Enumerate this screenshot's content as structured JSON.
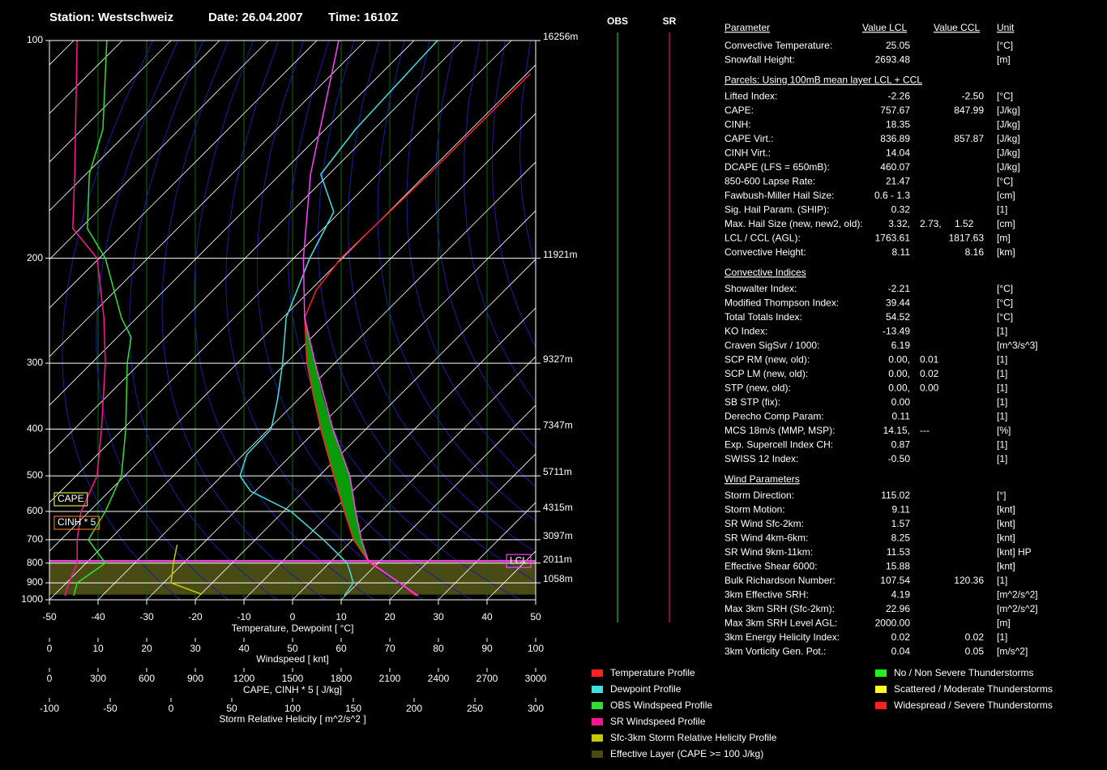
{
  "chart_data": {
    "type": "skewt",
    "title": "Station: Westschweiz",
    "date": "Date: 26.04.2007",
    "time": "Time: 1610Z",
    "xlabel": "Temperature, Dewpoint [ °C]",
    "xlim": [
      -50,
      50
    ],
    "xticks": [
      -50,
      -40,
      -30,
      -20,
      -10,
      0,
      10,
      20,
      30,
      40,
      50
    ],
    "ylim": [
      1000,
      100
    ],
    "yticks": [
      100,
      200,
      300,
      400,
      500,
      600,
      700,
      800,
      900,
      1000
    ],
    "height_labels": [
      {
        "value": 100,
        "label": "16256m"
      },
      {
        "value": 200,
        "label": "11921m"
      },
      {
        "value": 300,
        "label": "9327m"
      },
      {
        "value": 400,
        "label": "7347m"
      },
      {
        "value": 500,
        "label": "5711m"
      },
      {
        "value": 600,
        "label": "4315m"
      },
      {
        "value": 700,
        "label": "3097m"
      },
      {
        "value": 800,
        "label": "2011m"
      },
      {
        "value": 900,
        "label": "1058m"
      }
    ],
    "wind_axis": {
      "label": "Windspeed  [ knt]",
      "xlim": [
        0,
        100
      ],
      "xticks": [
        0,
        10,
        20,
        30,
        40,
        50,
        60,
        70,
        80,
        90,
        100
      ]
    },
    "cape_axis": {
      "label": "CAPE, CINH * 5  [ J/kg]",
      "xlim": [
        0,
        3000
      ],
      "xticks": [
        0,
        300,
        600,
        900,
        1200,
        1500,
        1800,
        2100,
        2400,
        2700,
        3000
      ]
    },
    "srh_axis": {
      "label": "Storm Relative Helicity  [ m^2/s^2 ]",
      "xlim": [
        -100,
        300
      ],
      "xticks": [
        -100,
        -50,
        0,
        50,
        100,
        150,
        200,
        250,
        300
      ]
    },
    "series": [
      {
        "name": "Temperature Profile",
        "color": "#ff2020",
        "pressure": [
          975,
          900,
          850,
          800,
          700,
          600,
          500,
          400,
          300,
          250,
          225,
          200,
          150,
          110
        ],
        "values": [
          24.5,
          18.5,
          13.7,
          8.3,
          0.2,
          -7.5,
          -17.0,
          -29.3,
          -45.7,
          -55.5,
          -58.8,
          -60.3,
          -59.5,
          -59.3
        ]
      },
      {
        "name": "Dewpoint Profile",
        "color": "#40e0e0",
        "pressure": [
          975,
          900,
          850,
          800,
          700,
          600,
          540,
          500,
          450,
          400,
          350,
          300,
          250,
          200,
          170,
          150,
          130,
          100
        ],
        "values": [
          9.8,
          9.0,
          6.5,
          3.7,
          -6.0,
          -18.5,
          -31.0,
          -36.3,
          -39.3,
          -39.5,
          -44.3,
          -50.7,
          -59.3,
          -66.7,
          -71.3,
          -81.7,
          -83.8,
          -85.2
        ]
      },
      {
        "color": "#ff40ff",
        "pressure": [
          975,
          790,
          700,
          600,
          500,
          400,
          300,
          250,
          200,
          150,
          100
        ],
        "values": [
          25.0,
          7.6,
          1.8,
          -5.2,
          -13.7,
          -26.8,
          -44.0,
          -55.5,
          -68.0,
          -83.8,
          -105.5
        ]
      },
      {
        "name": "OBS Windspeed Profile",
        "color": "#30e030",
        "axis": "wind",
        "pressure": [
          975,
          900,
          800,
          700,
          600,
          500,
          400,
          300,
          270,
          250,
          200,
          180,
          150,
          130,
          100
        ],
        "values": [
          5,
          5.7,
          11.5,
          8,
          11.5,
          14.8,
          15.7,
          16,
          16.8,
          14.8,
          11.5,
          7.8,
          8.2,
          11,
          11.8
        ]
      },
      {
        "name": "SR Windspeed Profile",
        "color": "#ff1493",
        "axis": "wind",
        "pressure": [
          975,
          900,
          800,
          700,
          600,
          500,
          400,
          300,
          250,
          200,
          180,
          150,
          100
        ],
        "values": [
          3.2,
          4,
          5.7,
          5.7,
          6.5,
          9.8,
          10.7,
          11.5,
          11.2,
          9.8,
          4.8,
          5.2,
          5.7
        ]
      }
    ],
    "helicity_profile": {
      "name": "Sfc-3km Storm Relative Helicity Profile",
      "color": "#c8c800",
      "pressure": [
        965,
        900,
        800,
        720
      ],
      "values": [
        25,
        0,
        2,
        5
      ]
    },
    "effective_layer": {
      "name": "Effective Layer (CAPE >= 100 J/kg)",
      "color": "#4a4a14",
      "bottom": 968,
      "top": 785
    },
    "lcl": {
      "label": "LCL",
      "pressure": 790,
      "color": "#ff40ff"
    },
    "annotations": [
      {
        "text": "CAPE",
        "color": "#e0e040"
      },
      {
        "text": "CINH * 5",
        "color": "#e07030"
      }
    ],
    "barb_columns": [
      {
        "name": "OBS",
        "color": "#30e030"
      },
      {
        "name": "SR",
        "color": "#ff1493"
      }
    ],
    "threat_legend": [
      {
        "name": "No / Non Severe Thunderstorms",
        "color": "#20f020"
      },
      {
        "name": "Scattered / Moderate Thunderstorms",
        "color": "#ffff20"
      },
      {
        "name": "Widespread / Severe Thunderstorms",
        "color": "#ff2020"
      }
    ]
  },
  "parameters": {
    "header": [
      "Parameter",
      "Value LCL",
      "Value CCL",
      "Unit"
    ],
    "sections": [
      {
        "rows": [
          {
            "label": "Convective Temperature:",
            "values": [
              {
                "text": "25.05",
                "color": "#ff3030"
              }
            ],
            "unit": "[°C]"
          },
          {
            "label": "Snowfall Height:",
            "values": [
              {
                "text": "2693.48",
                "color": "#ffffff"
              }
            ],
            "unit": "[m]"
          }
        ]
      },
      {
        "title": "Parcels: Using 100mB mean layer LCL + CCL",
        "rows": [
          {
            "label": "Lifted Index:",
            "values": [
              {
                "text": "-2.26",
                "color": "#ff3030"
              },
              {
                "text": "-2.50",
                "color": "#ff3030"
              }
            ],
            "unit": "[°C]"
          },
          {
            "label": "CAPE:",
            "values": [
              {
                "text": "757.67",
                "color": "#ff3030"
              },
              {
                "text": "847.99",
                "color": "#ff3030"
              }
            ],
            "unit": "[J/kg]"
          },
          {
            "label": "CINH:",
            "values": [
              {
                "text": "18.35",
                "color": "#ff3030"
              }
            ],
            "unit": "[J/kg]"
          },
          {
            "label": "CAPE Virt.:",
            "values": [
              {
                "text": "836.89",
                "color": "#ff3030"
              },
              {
                "text": "857.87",
                "color": "#ff3030"
              }
            ],
            "unit": "[J/kg]"
          },
          {
            "label": "CINH Virt.:",
            "values": [
              {
                "text": "14.04",
                "color": "#ff3030"
              }
            ],
            "unit": "[J/kg]"
          },
          {
            "label": "DCAPE (LFS = 650mB):",
            "values": [
              {
                "text": "460.07",
                "color": "#ffff40"
              }
            ],
            "unit": "[J/kg]"
          },
          {
            "label": "850-600 Lapse Rate:",
            "values": [
              {
                "text": "21.47",
                "color": "#ff3030"
              }
            ],
            "unit": "[°C]"
          },
          {
            "label": "Fawbush-Miller Hail Size:",
            "values": [
              {
                "text": "0.6 - 1.3",
                "color": "#ffff40"
              }
            ],
            "unit": "[cm]"
          },
          {
            "label": "Sig. Hail Param. (SHIP):",
            "values": [
              {
                "text": "0.32",
                "color": "#30f030"
              }
            ],
            "unit": "[1]"
          },
          {
            "label": "Max. Hail Size (new, new2, old):",
            "values": [
              {
                "text": "3.32,",
                "color": "#ff3030"
              },
              {
                "text": "2.73,",
                "color": "#ffff40"
              },
              {
                "text": "1.52",
                "color": "#ffff40"
              }
            ],
            "unit": "[cm]"
          },
          {
            "label": "LCL / CCL (AGL):",
            "values": [
              {
                "text": "1763.61",
                "color": "#ffff40"
              },
              {
                "text": "1817.63",
                "color": "#ffff40"
              }
            ],
            "unit": "[m]"
          },
          {
            "label": "Convective Height:",
            "values": [
              {
                "text": "8.11",
                "color": "#ff3030"
              },
              {
                "text": "8.16",
                "color": "#ff3030"
              }
            ],
            "unit": "[km]"
          }
        ]
      },
      {
        "title": "Convective Indices",
        "rows": [
          {
            "label": "Showalter Index:",
            "values": [
              {
                "text": "-2.21",
                "color": "#ff3030"
              }
            ],
            "unit": "[°C]"
          },
          {
            "label": "Modified Thompson Index:",
            "values": [
              {
                "text": "39.44",
                "color": "#ff3030"
              }
            ],
            "unit": "[°C]"
          },
          {
            "label": "Total Totals Index:",
            "values": [
              {
                "text": "54.52",
                "color": "#ff3030"
              }
            ],
            "unit": "[°C]"
          },
          {
            "label": "KO Index:",
            "values": [
              {
                "text": "-13.49",
                "color": "#ff3030"
              }
            ],
            "unit": "[1]"
          },
          {
            "label": "Craven SigSvr / 1000:",
            "values": [
              {
                "text": "6.19",
                "color": "#ff3030"
              }
            ],
            "unit": "[m^3/s^3]"
          },
          {
            "label": "SCP RM (new, old):",
            "values": [
              {
                "text": "0.00,",
                "color": "#30f030"
              },
              {
                "text": "0.01",
                "color": "#30f030"
              }
            ],
            "unit": "[1]"
          },
          {
            "label": "SCP LM (new, old):",
            "values": [
              {
                "text": "0.00,",
                "color": "#30f030"
              },
              {
                "text": "0.02",
                "color": "#30f030"
              }
            ],
            "unit": "[1]"
          },
          {
            "label": "STP (new, old):",
            "values": [
              {
                "text": "0.00,",
                "color": "#30f030"
              },
              {
                "text": "0.00",
                "color": "#30f030"
              }
            ],
            "unit": "[1]"
          },
          {
            "label": "SB STP (fix):",
            "values": [
              {
                "text": "0.00",
                "color": "#30f030"
              }
            ],
            "unit": "[1]"
          },
          {
            "label": "Derecho Comp Param:",
            "values": [
              {
                "text": "0.11",
                "color": "#30f030"
              }
            ],
            "unit": "[1]"
          },
          {
            "label": "MCS 18m/s (MMP, MSP):",
            "values": [
              {
                "text": "14.15,",
                "color": "#30f030"
              },
              {
                "text": "---",
                "color": "#ffffff"
              }
            ],
            "unit": "[%]"
          },
          {
            "label": "Exp. Supercell Index CH:",
            "values": [
              {
                "text": "0.87",
                "color": "#30f030"
              }
            ],
            "unit": "[1]"
          },
          {
            "label": "SWISS 12 Index:",
            "values": [
              {
                "text": "-0.50",
                "color": "#ff3030"
              }
            ],
            "unit": "[1]"
          }
        ]
      },
      {
        "title": "Wind Parameters",
        "rows": [
          {
            "label": "Storm Direction:",
            "values": [
              {
                "text": "115.02",
                "color": "#ffffff"
              }
            ],
            "unit": "[°]"
          },
          {
            "label": "Storm Motion:",
            "values": [
              {
                "text": "9.11",
                "color": "#30f030"
              }
            ],
            "unit": "[knt]"
          },
          {
            "label": "SR Wind Sfc-2km:",
            "values": [
              {
                "text": "1.57",
                "color": "#30f030"
              }
            ],
            "unit": "[knt]"
          },
          {
            "label": "SR Wind 4km-6km:",
            "values": [
              {
                "text": "8.25",
                "color": "#30f030"
              }
            ],
            "unit": "[knt]"
          },
          {
            "label": "SR Wind 9km-11km:",
            "values": [
              {
                "text": "11.53",
                "color": "#ff3030"
              }
            ],
            "unit": "[knt] HP"
          },
          {
            "label": "Effective Shear 6000:",
            "values": [
              {
                "text": "15.88",
                "color": "#30f030"
              }
            ],
            "unit": "[knt]"
          },
          {
            "label": "Bulk Richardson Number:",
            "values": [
              {
                "text": "107.54",
                "color": "#ffff40"
              },
              {
                "text": "120.36",
                "color": "#ffff40"
              }
            ],
            "unit": "[1]"
          },
          {
            "label": "3km Effective SRH:",
            "values": [
              {
                "text": "4.19",
                "color": "#30f030"
              }
            ],
            "unit": "[m^2/s^2]"
          },
          {
            "label": "Max 3km SRH (Sfc-2km):",
            "values": [
              {
                "text": "22.96",
                "color": "#30f030"
              }
            ],
            "unit": "[m^2/s^2]"
          },
          {
            "label": "Max 3km SRH Level AGL:",
            "values": [
              {
                "text": "2000.00",
                "color": "#30f030"
              }
            ],
            "unit": "[m]"
          },
          {
            "label": "3km Energy Helicity Index:",
            "values": [
              {
                "text": "0.02",
                "color": "#30f030"
              },
              {
                "text": "0.02",
                "color": "#30f030"
              }
            ],
            "unit": "[1]"
          },
          {
            "label": "3km Vorticity Gen. Pot.:",
            "values": [
              {
                "text": "0.04",
                "color": "#30f030"
              },
              {
                "text": "0.05",
                "color": "#30f030"
              }
            ],
            "unit": "[m/s^2]"
          }
        ]
      }
    ]
  }
}
